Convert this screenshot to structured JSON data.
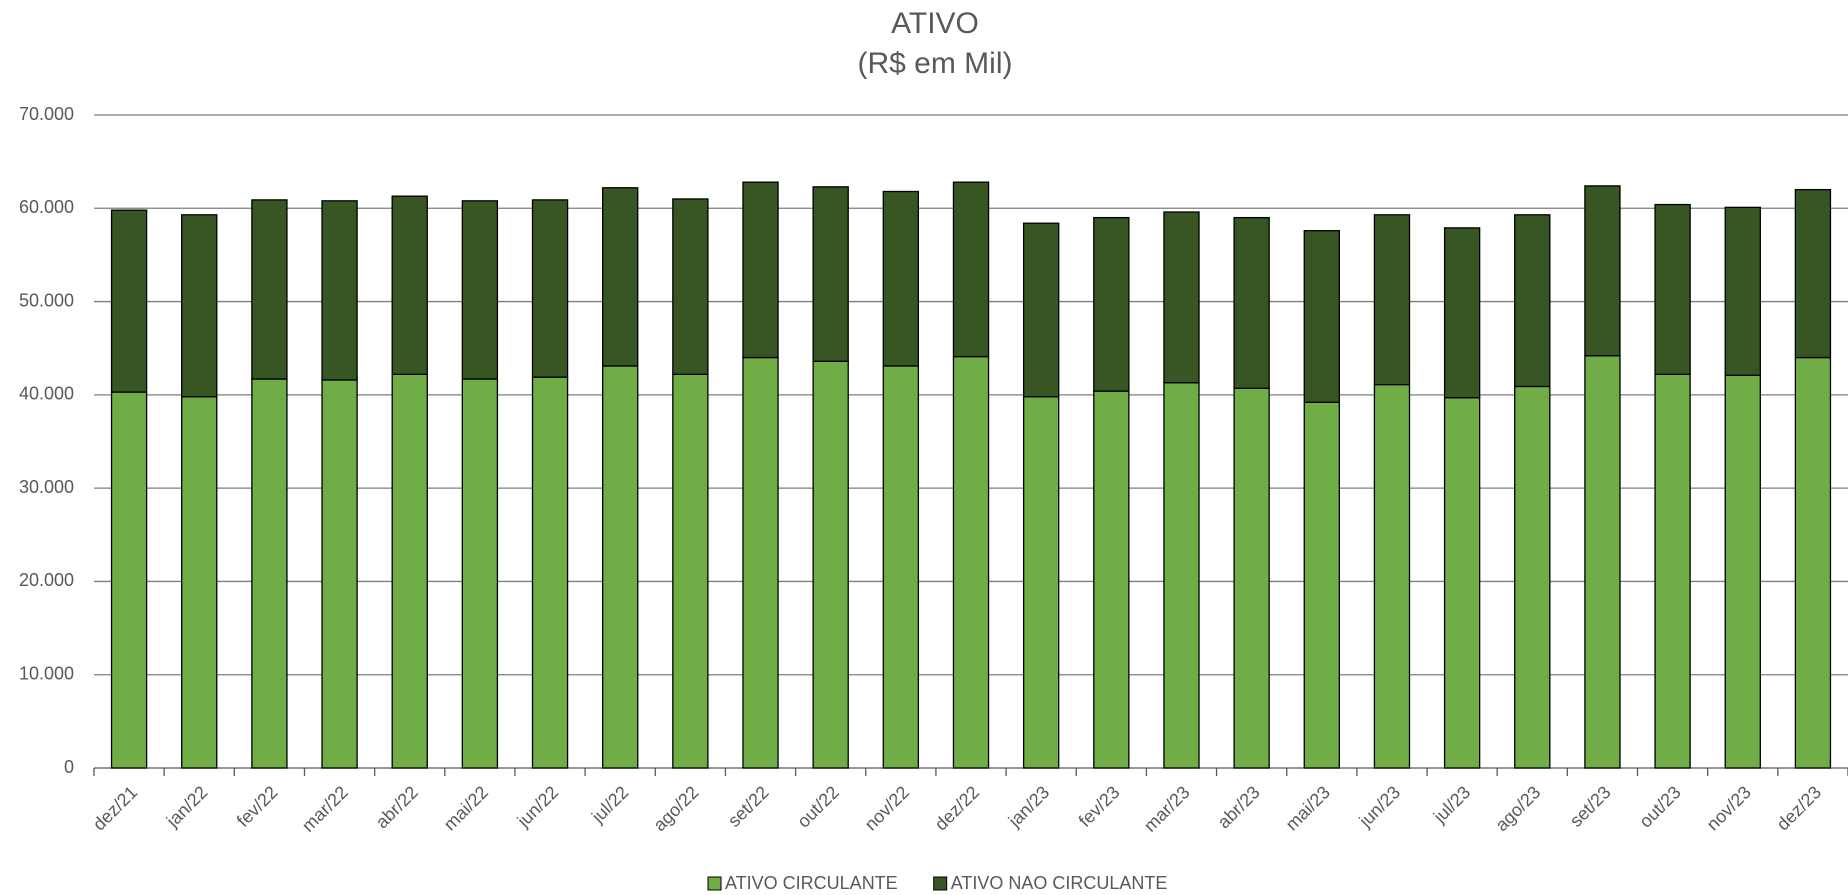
{
  "chart_data": {
    "type": "stacked-bar",
    "title": "ATIVO",
    "subtitle": "(R$ em Mil)",
    "categories": [
      "dez/21",
      "jan/22",
      "fev/22",
      "mar/22",
      "abr/22",
      "mai/22",
      "jun/22",
      "jul/22",
      "ago/22",
      "set/22",
      "out/22",
      "nov/22",
      "dez/22",
      "jan/23",
      "fev/23",
      "mar/23",
      "abr/23",
      "mai/23",
      "jun/23",
      "jul/23",
      "ago/23",
      "set/23",
      "out/23",
      "nov/23",
      "dez/23"
    ],
    "series": [
      {
        "name": "ATIVO CIRCULANTE",
        "color": "#70ad47",
        "values": [
          40300,
          39800,
          41700,
          41600,
          42200,
          41700,
          41900,
          43100,
          42200,
          44000,
          43600,
          43100,
          44100,
          39800,
          40400,
          41300,
          40700,
          39200,
          41100,
          39700,
          40900,
          44200,
          42200,
          42100,
          44000
        ]
      },
      {
        "name": "ATIVO NAO CIRCULANTE",
        "color": "#375623",
        "values": [
          19500,
          19500,
          19200,
          19200,
          19100,
          19100,
          19000,
          19100,
          18800,
          18800,
          18700,
          18700,
          18700,
          18600,
          18600,
          18300,
          18300,
          18400,
          18200,
          18200,
          18400,
          18200,
          18200,
          18000,
          18000
        ]
      }
    ],
    "ylim": [
      0,
      70000
    ],
    "yticks": [
      0,
      {
        "value": 10000,
        "label": "10.000"
      },
      {
        "value": 20000,
        "label": "20.000"
      },
      {
        "value": 30000,
        "label": "30.000"
      },
      {
        "value": 40000,
        "label": "40.000"
      },
      {
        "value": 50000,
        "label": "50.000"
      },
      {
        "value": 60000,
        "label": "60.000"
      },
      {
        "value": 70000,
        "label": "70.000"
      }
    ],
    "grid": true,
    "legend": "bottom"
  }
}
